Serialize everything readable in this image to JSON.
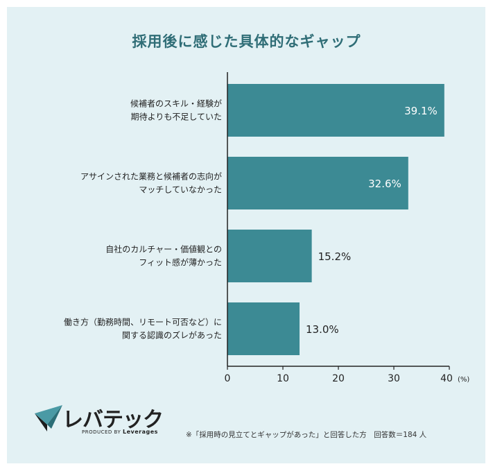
{
  "chart_data": {
    "type": "bar",
    "orientation": "horizontal",
    "title": "採用後に感じた具体的なギャップ",
    "categories": [
      [
        "候補者のスキル・経験が",
        "期待よりも不足していた"
      ],
      [
        "アサインされた業務と候補者の志向が",
        "マッチしていなかった"
      ],
      [
        "自社のカルチャー・価値観との",
        "フィット感が薄かった"
      ],
      [
        "働き方（勤務時間、リモート可否など）に",
        "関する認識のズレがあった"
      ]
    ],
    "values": [
      39.1,
      32.6,
      15.2,
      13.0
    ],
    "value_labels": [
      "39.1%",
      "32.6%",
      "15.2%",
      "13.0%"
    ],
    "xlim": [
      0,
      40
    ],
    "xticks": [
      "0",
      "10",
      "20",
      "30",
      "40"
    ],
    "xunit": "(%)",
    "bar_color": "#3c8a94",
    "label_inside_color": "#ffffff",
    "label_outside_color": "#222222"
  },
  "footer": {
    "logo_text": "レバテック",
    "logo_sub_prefix": "PRODUCED BY",
    "logo_sub_brand": "Leverages",
    "note": "※「採用時の見立てとギャップがあった」と回答した方　回答数＝184 人"
  },
  "colors": {
    "background": "#e3f1f4",
    "title": "#2f6d76",
    "axis": "#222222"
  }
}
